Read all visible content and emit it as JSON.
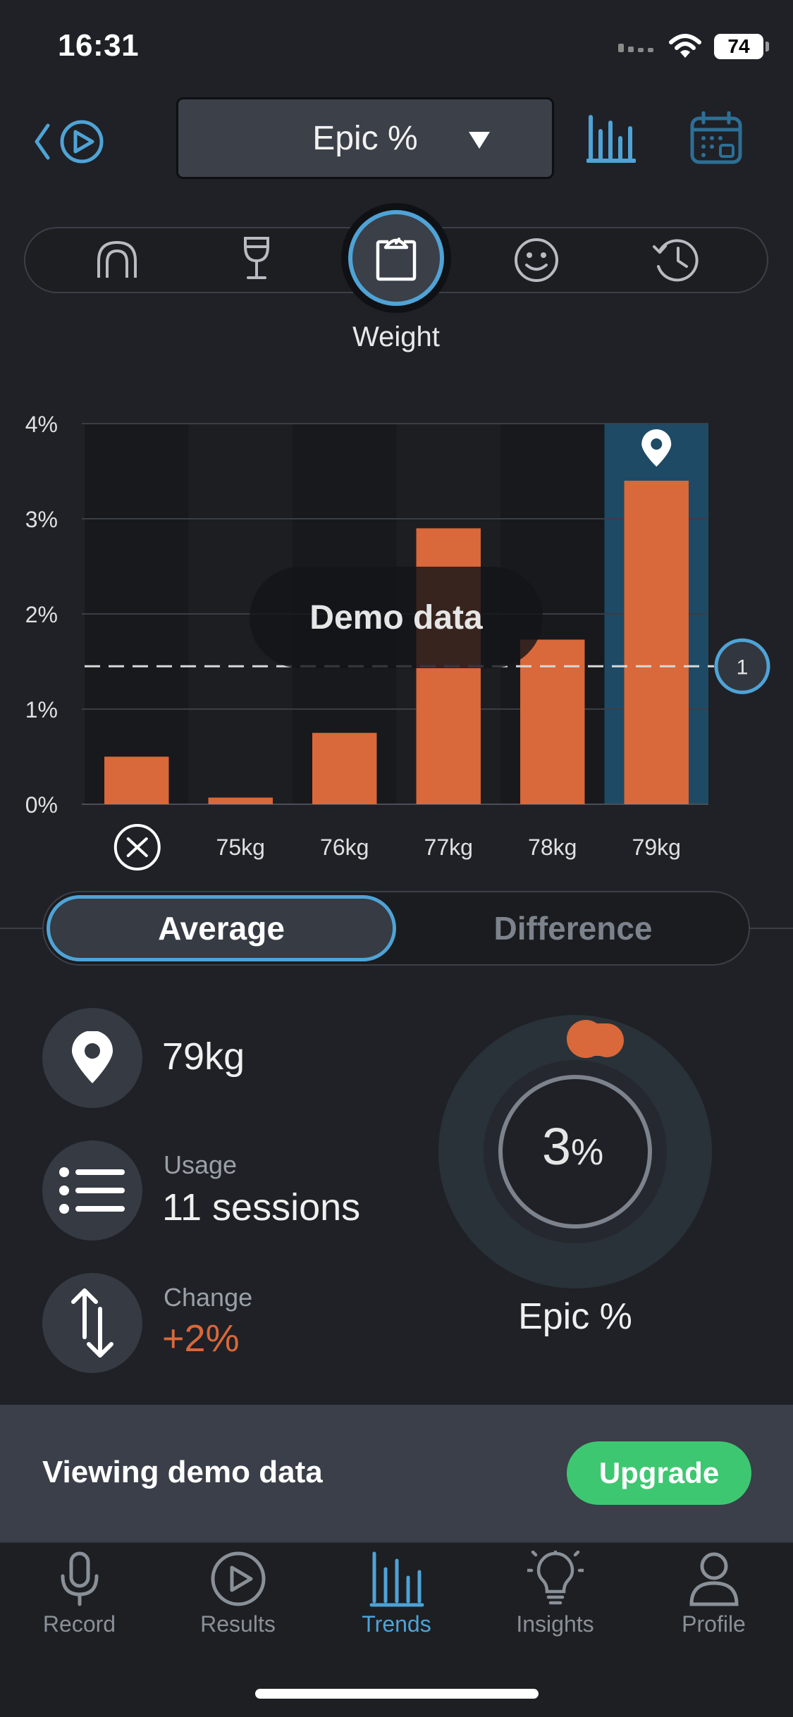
{
  "status": {
    "time": "16:31",
    "battery": "74"
  },
  "header": {
    "metric": "Epic %"
  },
  "categories": {
    "items": [
      "mouthguard",
      "drink",
      "weight",
      "mood",
      "history"
    ],
    "active": "weight",
    "active_label": "Weight"
  },
  "chart_data": {
    "type": "bar",
    "categories": [
      "",
      "75kg",
      "76kg",
      "77kg",
      "78kg",
      "79kg"
    ],
    "values": [
      0.5,
      0.07,
      0.75,
      2.9,
      1.73,
      3.4
    ],
    "y_tick_labels": [
      "0%",
      "1%",
      "2%",
      "3%",
      "4%"
    ],
    "ylim": [
      0,
      4
    ],
    "reference_line": {
      "value": 1.45,
      "label": "1"
    },
    "selected_category": "79kg",
    "bar_color": "#d9683a",
    "overlay_text": "Demo data"
  },
  "toggle": {
    "average": "Average",
    "difference": "Difference",
    "selected": "average"
  },
  "stats": {
    "selected_value": "79kg",
    "usage_label": "Usage",
    "usage_value": "11 sessions",
    "change_label": "Change",
    "change_value": "+2%"
  },
  "gauge": {
    "value": "3",
    "unit": "%",
    "label": "Epic %",
    "accent": "#d9683a"
  },
  "banner": {
    "text": "Viewing demo data",
    "button": "Upgrade"
  },
  "tabs": [
    {
      "label": "Record"
    },
    {
      "label": "Results"
    },
    {
      "label": "Trends"
    },
    {
      "label": "Insights"
    },
    {
      "label": "Profile"
    }
  ],
  "colors": {
    "accent": "#4fa3d6",
    "orange": "#d9683a",
    "green": "#3ec771"
  }
}
